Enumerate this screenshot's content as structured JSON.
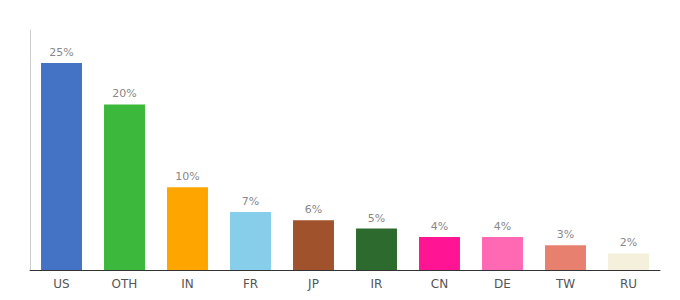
{
  "chart_data": {
    "type": "bar",
    "categories": [
      "US",
      "OTH",
      "IN",
      "FR",
      "JP",
      "IR",
      "CN",
      "DE",
      "TW",
      "RU"
    ],
    "values": [
      25,
      20,
      10,
      7,
      6,
      5,
      4,
      4,
      3,
      2
    ],
    "value_labels": [
      "25%",
      "20%",
      "10%",
      "7%",
      "6%",
      "5%",
      "4%",
      "4%",
      "3%",
      "2%"
    ],
    "colors": [
      "#4472C4",
      "#3CB83C",
      "#FFA500",
      "#87CEEB",
      "#A0522D",
      "#2D6A2D",
      "#FF1493",
      "#FF69B4",
      "#E88070",
      "#F5F0DC"
    ],
    "ylim": [
      0,
      29
    ],
    "grid": false,
    "data_labels": true,
    "tick_labels": "x"
  }
}
